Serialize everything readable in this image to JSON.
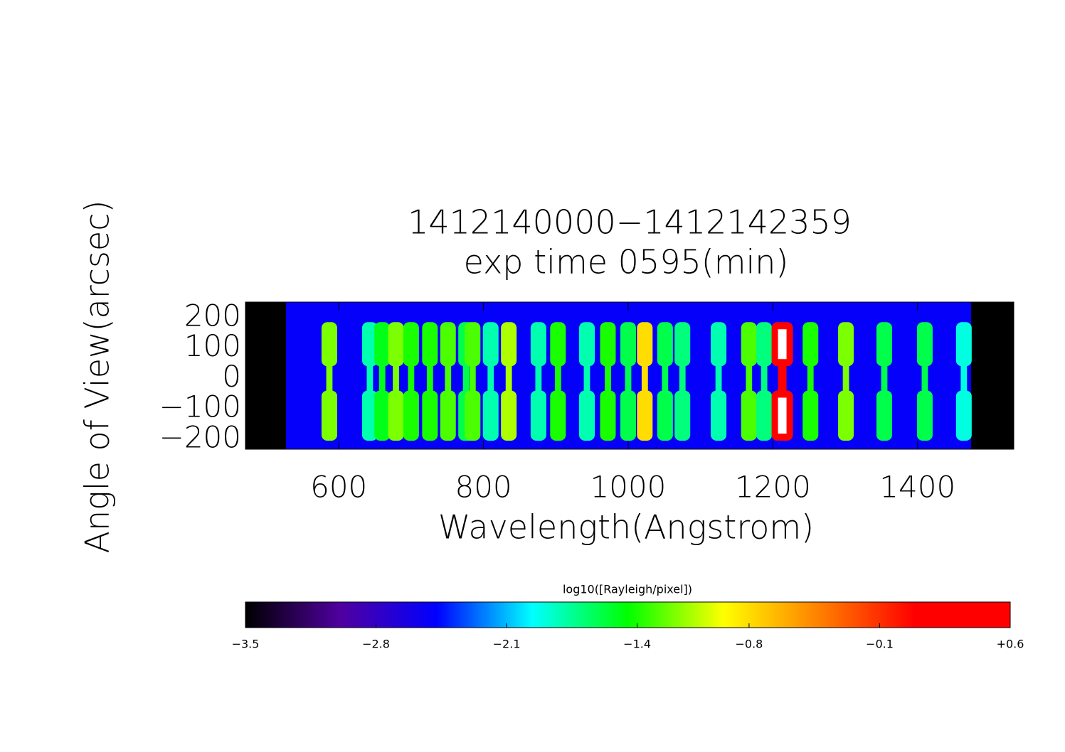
{
  "chart_data": {
    "type": "spectrogram",
    "title": [
      "1412140000−1412142359",
      "exp time 0595(min)"
    ],
    "xlabel": "Wavelength(Angstrom)",
    "ylabel": "Angle of View(arcsec)",
    "xlim": [
      471,
      1533
    ],
    "ylim": [
      -233,
      251
    ],
    "xticks": [
      600,
      800,
      1000,
      1200,
      1400
    ],
    "yticks": [
      {
        "value": -200,
        "label": "−200"
      },
      {
        "value": -100,
        "label": "−100"
      },
      0,
      100,
      200
    ],
    "detector_xrange": [
      527,
      1474
    ],
    "background": -2.5,
    "x": [
      587,
      643,
      660,
      679,
      700,
      726,
      751,
      776,
      785,
      810,
      835,
      876,
      903,
      943,
      972,
      1000,
      1023,
      1051,
      1075,
      1125,
      1167,
      1188,
      1213,
      1252,
      1301,
      1354,
      1410,
      1464
    ],
    "values": [
      -1.2,
      -1.8,
      -1.5,
      -1.2,
      -1.4,
      -1.4,
      -1.3,
      -1.6,
      -1.3,
      -1.8,
      -1.1,
      -1.8,
      -1.4,
      -1.8,
      -1.4,
      -1.6,
      -0.8,
      -1.6,
      -1.7,
      -1.8,
      -1.3,
      -1.7,
      0.5,
      -1.4,
      -1.2,
      -1.6,
      -1.6,
      -1.9
    ],
    "colorbar": {
      "label": "log10([Rayleigh/pixel])",
      "clim": [
        -3.5,
        0.6
      ],
      "colors": [
        "#000000",
        "#5000a0",
        "#0000ff",
        "#00ffff",
        "#00ff00",
        "#ffff00",
        "#ff8000",
        "#ff0000",
        "#ff0000"
      ],
      "ticks": [
        {
          "value": -3.5,
          "label": "−3.5"
        },
        {
          "value": -2.8,
          "label": "−2.8"
        },
        {
          "value": -2.1,
          "label": "−2.1"
        },
        {
          "value": -1.4,
          "label": "−1.4"
        },
        {
          "value": -0.8,
          "label": "−0.8"
        },
        {
          "value": -0.1,
          "label": "−0.1"
        },
        {
          "value": 0.6,
          "label": "+0.6"
        }
      ]
    }
  }
}
